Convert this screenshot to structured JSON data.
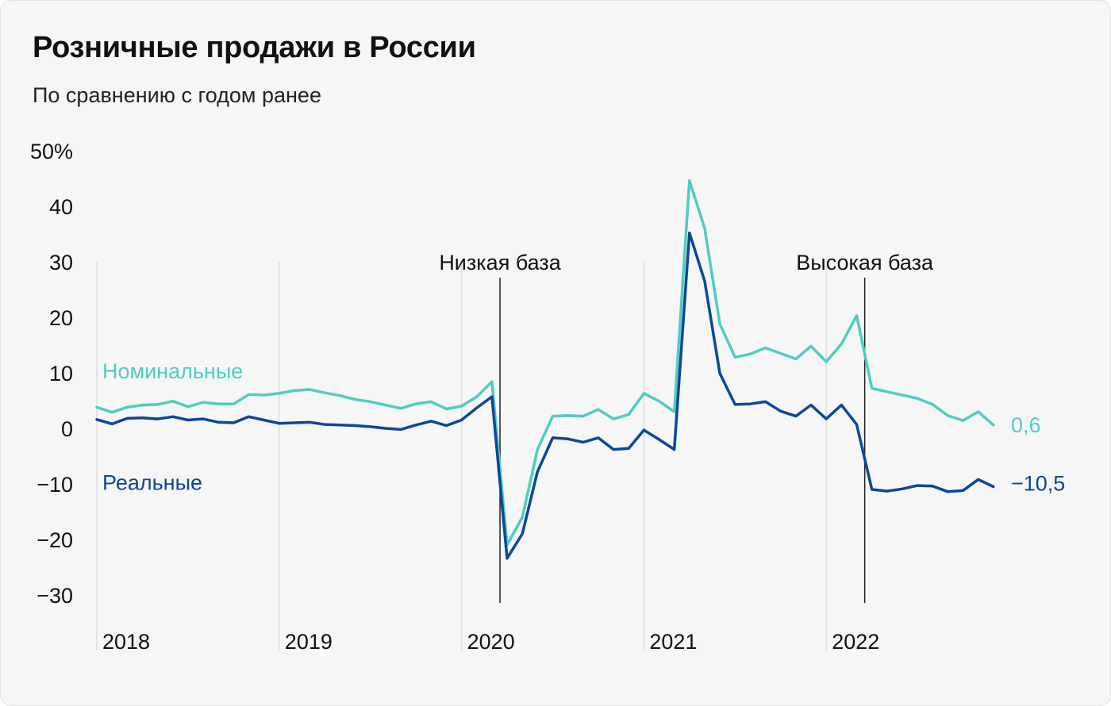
{
  "colors": {
    "nominal": "#4fcdc1",
    "real": "#0d4796",
    "grid": "#dedede",
    "annotation": "#222222"
  },
  "chart_data": {
    "type": "line",
    "title": "Розничные продажи в России",
    "subtitle": "По сравнению с годом ранее",
    "ylim": [
      -30,
      50
    ],
    "y_ticks": [
      50,
      40,
      30,
      20,
      10,
      0,
      -10,
      -20,
      -30
    ],
    "y_tick_labels": [
      "50%",
      "40",
      "30",
      "20",
      "10",
      "0",
      "−10",
      "−20",
      "−30"
    ],
    "x_tick_labels": [
      "2018",
      "2019",
      "2020",
      "2021",
      "2022"
    ],
    "grid": "vertical at year starts",
    "annotations": [
      {
        "label": "Низкая база",
        "x": "2020-04"
      },
      {
        "label": "Высокая база",
        "x": "2022-04"
      }
    ],
    "x": [
      "2018-01",
      "2018-02",
      "2018-03",
      "2018-04",
      "2018-05",
      "2018-06",
      "2018-07",
      "2018-08",
      "2018-09",
      "2018-10",
      "2018-11",
      "2018-12",
      "2019-01",
      "2019-02",
      "2019-03",
      "2019-04",
      "2019-05",
      "2019-06",
      "2019-07",
      "2019-08",
      "2019-09",
      "2019-10",
      "2019-11",
      "2019-12",
      "2020-01",
      "2020-02",
      "2020-03",
      "2020-04",
      "2020-05",
      "2020-06",
      "2020-07",
      "2020-08",
      "2020-09",
      "2020-10",
      "2020-11",
      "2020-12",
      "2021-01",
      "2021-02",
      "2021-03",
      "2021-04",
      "2021-05",
      "2021-06",
      "2021-07",
      "2021-08",
      "2021-09",
      "2021-10",
      "2021-11",
      "2021-12",
      "2022-01",
      "2022-02",
      "2022-03",
      "2022-04",
      "2022-05",
      "2022-06",
      "2022-07",
      "2022-08",
      "2022-09",
      "2022-10",
      "2022-11",
      "2022-12"
    ],
    "series": [
      {
        "name": "Номинальные",
        "end_label": "0,6",
        "values": [
          3.8,
          2.9,
          3.8,
          4.2,
          4.3,
          4.9,
          3.9,
          4.7,
          4.4,
          4.4,
          6.1,
          6.0,
          6.3,
          6.8,
          7.0,
          6.4,
          5.9,
          5.2,
          4.8,
          4.2,
          3.6,
          4.4,
          4.8,
          3.5,
          4.0,
          5.7,
          8.4,
          -21.0,
          -16.0,
          -3.8,
          2.2,
          2.3,
          2.2,
          3.4,
          1.7,
          2.5,
          6.3,
          4.9,
          3.0,
          44.6,
          36.0,
          18.8,
          12.8,
          13.4,
          14.5,
          13.5,
          12.5,
          14.8,
          12.0,
          15.2,
          20.3,
          7.2,
          6.6,
          6.0,
          5.4,
          4.3,
          2.3,
          1.4,
          3.0,
          0.6
        ]
      },
      {
        "name": "Реальные",
        "end_label": "−10,5",
        "values": [
          1.6,
          0.8,
          1.8,
          1.9,
          1.7,
          2.1,
          1.5,
          1.7,
          1.1,
          1.0,
          2.1,
          1.5,
          0.9,
          1.0,
          1.1,
          0.7,
          0.6,
          0.5,
          0.3,
          0.0,
          -0.2,
          0.6,
          1.3,
          0.5,
          1.5,
          3.7,
          5.7,
          -23.4,
          -19.0,
          -7.8,
          -1.7,
          -1.9,
          -2.5,
          -1.7,
          -3.8,
          -3.6,
          -0.3,
          -2.0,
          -3.8,
          35.2,
          26.5,
          9.9,
          4.3,
          4.4,
          4.8,
          3.1,
          2.2,
          4.2,
          1.7,
          4.2,
          0.7,
          -11.0,
          -11.3,
          -10.9,
          -10.3,
          -10.4,
          -11.4,
          -11.2,
          -9.2,
          -10.5
        ]
      }
    ]
  }
}
